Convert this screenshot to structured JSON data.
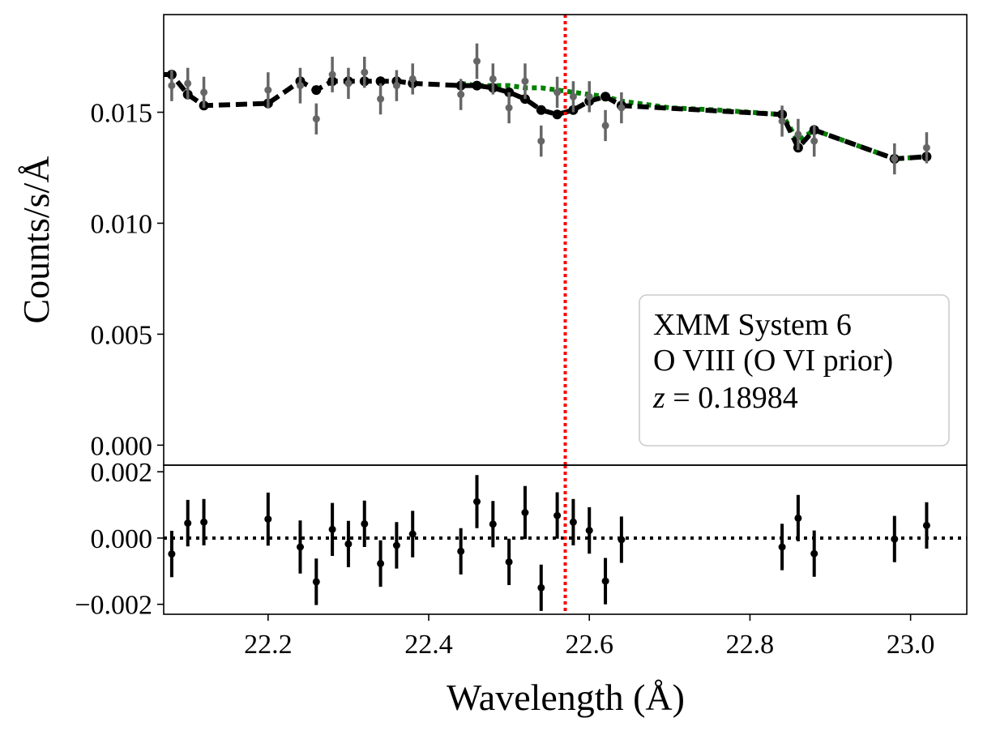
{
  "chart_data": [
    {
      "panel": "spectrum",
      "type": "scatter",
      "ylabel": "Counts/s/Å",
      "xlim": [
        22.07,
        23.07
      ],
      "ylim": [
        -0.0009,
        0.0194
      ],
      "yticks": [
        0.0,
        0.005,
        0.01,
        0.015
      ],
      "ytick_labels": [
        "0.000",
        "0.005",
        "0.010",
        "0.015"
      ],
      "legend": {
        "position": "lower-right",
        "line1": "XMM System 6",
        "line2": "O VIII (O VI prior)",
        "line3_var": "z",
        "line3_eq": " = ",
        "line3_val": "0.18984"
      },
      "reference_line": {
        "x": 22.57,
        "color": "#ff0000",
        "style": "dotted"
      },
      "series": [
        {
          "name": "data",
          "color": "#666666",
          "x": [
            22.08,
            22.1,
            22.12,
            22.2,
            22.24,
            22.26,
            22.28,
            22.3,
            22.32,
            22.34,
            22.36,
            22.38,
            22.44,
            22.46,
            22.48,
            22.5,
            22.52,
            22.54,
            22.56,
            22.58,
            22.6,
            22.62,
            22.64,
            22.84,
            22.86,
            22.88,
            22.98,
            23.02
          ],
          "y": [
            0.0162,
            0.0163,
            0.0159,
            0.016,
            0.0162,
            0.0147,
            0.0167,
            0.0163,
            0.0168,
            0.0156,
            0.0162,
            0.0165,
            0.0158,
            0.0173,
            0.0165,
            0.0152,
            0.0164,
            0.0137,
            0.0159,
            0.0157,
            0.0157,
            0.0144,
            0.0152,
            0.0146,
            0.014,
            0.0137,
            0.0129,
            0.0134
          ],
          "yerr": [
            0.0007,
            0.0007,
            0.0007,
            0.0008,
            0.0008,
            0.0007,
            0.0008,
            0.0007,
            0.0007,
            0.0007,
            0.0007,
            0.0007,
            0.0007,
            0.0008,
            0.0007,
            0.0007,
            0.0008,
            0.0007,
            0.0007,
            0.0007,
            0.0007,
            0.0007,
            0.0007,
            0.0007,
            0.0007,
            0.0007,
            0.0007,
            0.0007
          ]
        },
        {
          "name": "continuum model",
          "type": "line",
          "style": "dotted",
          "color": "#008000",
          "x": [
            22.44,
            22.46,
            22.48,
            22.5,
            22.52,
            22.54,
            22.56,
            22.58,
            22.6,
            22.62,
            22.64,
            22.7,
            22.76,
            22.84,
            22.86,
            22.88,
            22.98,
            23.02
          ],
          "y": [
            0.0163,
            0.0162,
            0.0162,
            0.0162,
            0.0161,
            0.0161,
            0.016,
            0.0159,
            0.0158,
            0.0157,
            0.0155,
            0.0152,
            0.0151,
            0.0149,
            0.0137,
            0.0142,
            0.0129,
            0.013
          ]
        },
        {
          "name": "line model",
          "type": "line",
          "style": "dashed",
          "color": "#000000",
          "x": [
            22.07,
            22.08,
            22.1,
            22.12,
            22.2,
            22.24,
            22.26,
            22.28,
            22.3,
            22.32,
            22.34,
            22.36,
            22.38,
            22.44,
            22.46,
            22.48,
            22.5,
            22.52,
            22.54,
            22.56,
            22.58,
            22.6,
            22.62,
            22.64,
            22.84,
            22.86,
            22.88,
            22.98,
            23.02
          ],
          "y": [
            0.0167,
            0.0167,
            0.0158,
            0.0153,
            0.0154,
            0.0164,
            0.016,
            0.0164,
            0.0164,
            0.0164,
            0.0164,
            0.0164,
            0.0163,
            0.0162,
            0.0162,
            0.0161,
            0.0159,
            0.0156,
            0.0151,
            0.0149,
            0.0151,
            0.0155,
            0.0157,
            0.0153,
            0.0149,
            0.0134,
            0.0142,
            0.0129,
            0.013
          ]
        }
      ]
    },
    {
      "panel": "residuals",
      "type": "scatter",
      "xlabel": "Wavelength (Å)",
      "xlim": [
        22.07,
        23.07
      ],
      "ylim": [
        -0.0023,
        0.0022
      ],
      "xticks": [
        22.2,
        22.4,
        22.6,
        22.8,
        23.0
      ],
      "xtick_labels": [
        "22.2",
        "22.4",
        "22.6",
        "22.8",
        "23.0"
      ],
      "yticks": [
        -0.002,
        0.0,
        0.002
      ],
      "ytick_labels": [
        "−0.002",
        "0.000",
        "0.002"
      ],
      "zero_line": {
        "y": 0.0,
        "style": "dotted"
      },
      "reference_line": {
        "x": 22.57,
        "color": "#ff0000",
        "style": "dotted"
      },
      "series": [
        {
          "name": "residuals",
          "color": "#000000",
          "x": [
            22.08,
            22.1,
            22.12,
            22.2,
            22.24,
            22.26,
            22.28,
            22.3,
            22.32,
            22.34,
            22.36,
            22.38,
            22.44,
            22.46,
            22.48,
            22.5,
            22.52,
            22.54,
            22.56,
            22.58,
            22.6,
            22.62,
            22.64,
            22.84,
            22.86,
            22.88,
            22.98,
            23.02
          ],
          "y": [
            -0.00048,
            0.00045,
            0.00048,
            0.00057,
            -0.00027,
            -0.00132,
            0.00026,
            -0.00018,
            0.00043,
            -0.00077,
            -0.00022,
            0.00012,
            -0.0004,
            0.0011,
            0.00042,
            -0.00072,
            0.00077,
            -0.0015,
            0.00068,
            0.00048,
            0.00023,
            -0.0013,
            -5e-05,
            -0.00027,
            0.0006,
            -0.00047,
            -3e-05,
            0.00038
          ],
          "yerr": [
            0.0007,
            0.0007,
            0.0007,
            0.0008,
            0.0008,
            0.0007,
            0.0008,
            0.0007,
            0.0007,
            0.0007,
            0.0007,
            0.0007,
            0.0007,
            0.0008,
            0.0007,
            0.0007,
            0.0008,
            0.0007,
            0.0007,
            0.0007,
            0.0007,
            0.0007,
            0.0007,
            0.0007,
            0.0007,
            0.0007,
            0.0007,
            0.0007
          ]
        }
      ]
    }
  ]
}
